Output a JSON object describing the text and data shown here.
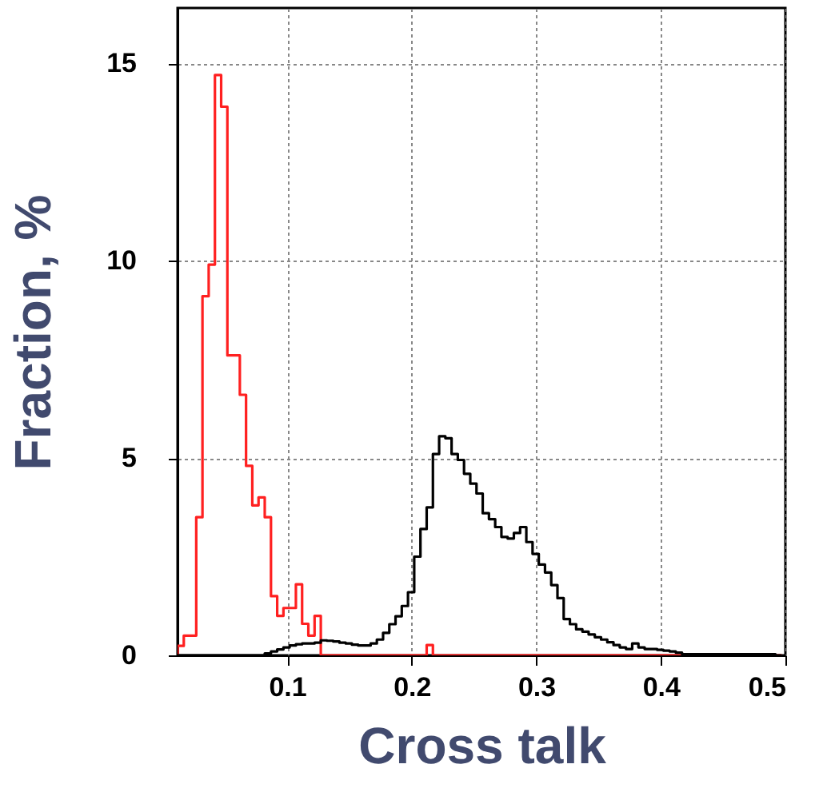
{
  "chart_data": {
    "type": "histogram",
    "xlabel": "Cross talk",
    "ylabel": "Fraction, %",
    "bins": [
      0.012,
      0.017,
      0.022,
      0.027,
      0.032,
      0.037,
      0.042,
      0.047,
      0.052,
      0.057,
      0.062,
      0.067,
      0.072,
      0.077,
      0.082,
      0.087,
      0.092,
      0.097,
      0.102,
      0.107,
      0.112,
      0.117,
      0.122,
      0.127,
      0.132,
      0.137,
      0.142,
      0.147,
      0.152,
      0.157,
      0.162,
      0.167,
      0.172,
      0.177,
      0.182,
      0.187,
      0.192,
      0.197,
      0.202,
      0.207,
      0.212,
      0.217,
      0.222,
      0.227,
      0.232,
      0.237,
      0.242,
      0.247,
      0.252,
      0.257,
      0.262,
      0.267,
      0.272,
      0.277,
      0.282,
      0.287,
      0.292,
      0.297,
      0.302,
      0.307,
      0.312,
      0.317,
      0.322,
      0.327,
      0.332,
      0.337,
      0.342,
      0.347,
      0.352,
      0.357,
      0.362,
      0.367,
      0.372,
      0.377,
      0.382,
      0.387,
      0.392,
      0.397,
      0.402,
      0.407,
      0.412,
      0.417,
      0.422,
      0.427,
      0.432,
      0.437,
      0.442,
      0.447,
      0.452,
      0.457,
      0.462,
      0.467,
      0.472,
      0.477,
      0.482,
      0.487,
      0.492,
      0.497
    ],
    "series": [
      {
        "color": "#ff2020",
        "values": [
          0.24,
          0.5,
          0.5,
          3.5,
          9.1,
          9.9,
          14.7,
          13.9,
          7.6,
          7.6,
          6.6,
          4.8,
          3.8,
          4.0,
          3.5,
          1.5,
          1.0,
          1.2,
          1.2,
          1.8,
          0.8,
          0.5,
          1.0,
          0,
          0,
          0,
          0,
          0,
          0,
          0,
          0,
          0,
          0,
          0,
          0,
          0,
          0,
          0,
          0,
          0,
          0.26,
          0,
          0,
          0,
          0,
          0,
          0,
          0,
          0,
          0,
          0,
          0,
          0,
          0,
          0,
          0,
          0,
          0,
          0,
          0,
          0,
          0,
          0,
          0,
          0,
          0,
          0,
          0,
          0,
          0,
          0,
          0,
          0,
          0,
          0,
          0,
          0,
          0,
          0,
          0,
          0,
          0,
          0,
          0,
          0,
          0,
          0,
          0,
          0,
          0,
          0,
          0,
          0,
          0,
          0,
          0,
          0
        ]
      },
      {
        "color": "#000000",
        "values": [
          0,
          0,
          0,
          0,
          0,
          0,
          0,
          0,
          0,
          0,
          0,
          0,
          0,
          0,
          0.05,
          0.1,
          0.15,
          0.2,
          0.25,
          0.28,
          0.3,
          0.3,
          0.32,
          0.38,
          0.37,
          0.35,
          0.32,
          0.3,
          0.27,
          0.25,
          0.25,
          0.3,
          0.4,
          0.57,
          0.79,
          0.99,
          1.25,
          1.6,
          2.5,
          3.2,
          3.75,
          5.1,
          5.55,
          5.5,
          5.1,
          4.95,
          4.6,
          4.35,
          4.1,
          3.6,
          3.45,
          3.25,
          3.0,
          2.96,
          3.1,
          3.25,
          2.87,
          2.57,
          2.3,
          2.1,
          1.78,
          1.45,
          0.92,
          0.79,
          0.66,
          0.6,
          0.53,
          0.46,
          0.4,
          0.33,
          0.26,
          0.2,
          0.16,
          0.3,
          0.2,
          0.16,
          0.16,
          0.14,
          0.12,
          0.1,
          0.07,
          0.03,
          0.03,
          0.03,
          0.03,
          0.03,
          0.03,
          0.03,
          0.03,
          0.03,
          0.03,
          0.03,
          0.03,
          0.03,
          0.03,
          0.03,
          0
        ]
      }
    ],
    "xlim": [
      0.012,
      0.5
    ],
    "ylim": [
      0,
      16.4
    ],
    "xticks": [
      0.1,
      0.2,
      0.3,
      0.4,
      0.5
    ],
    "yticks": [
      0,
      5,
      10,
      15
    ],
    "grid": true,
    "legend": false
  }
}
